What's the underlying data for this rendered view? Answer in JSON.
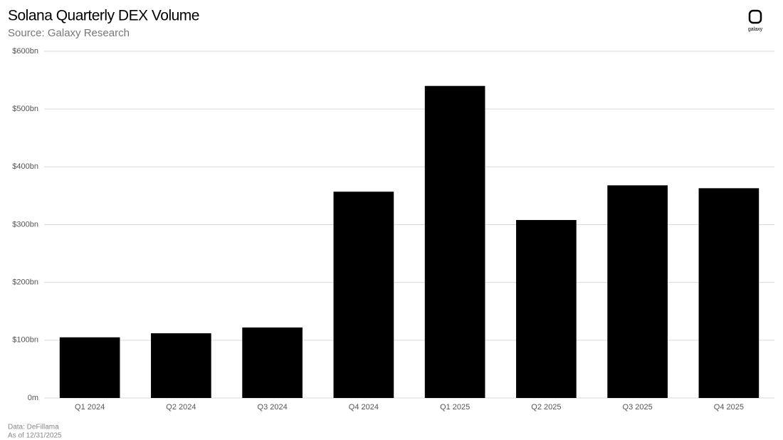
{
  "chart_data": {
    "type": "bar",
    "title": "Solana Quarterly DEX Volume",
    "subtitle": "Source: Galaxy Research",
    "categories": [
      "Q1 2024",
      "Q2 2024",
      "Q3 2024",
      "Q4 2024",
      "Q1 2025",
      "Q2 2025",
      "Q3 2025",
      "Q4 2025"
    ],
    "values": [
      105,
      112,
      122,
      357,
      540,
      308,
      368,
      363
    ],
    "color": "#000000",
    "ylim": [
      0,
      600
    ],
    "yticks": [
      {
        "value": 0,
        "label": "0m"
      },
      {
        "value": 100,
        "label": "$100bn"
      },
      {
        "value": 200,
        "label": "$200bn"
      },
      {
        "value": 300,
        "label": "$300bn"
      },
      {
        "value": 400,
        "label": "$400bn"
      },
      {
        "value": 500,
        "label": "$500bn"
      },
      {
        "value": 600,
        "label": "$600bn"
      }
    ],
    "grid": true,
    "notes": [
      "Data: DeFillama",
      "As of 12/31/2025"
    ],
    "logo": "galaxy"
  }
}
